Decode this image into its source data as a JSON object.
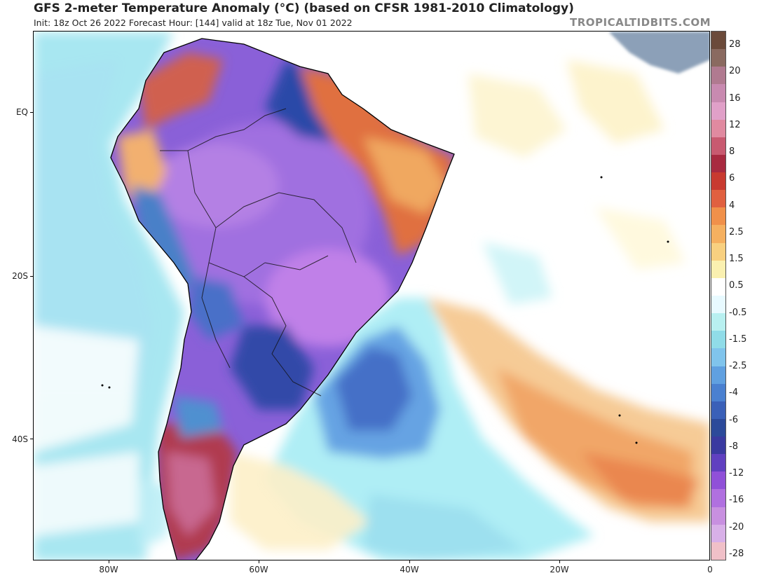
{
  "header": {
    "title": "GFS 2-meter Temperature Anomaly (°C) (based on CFSR 1981-2010 Climatology)",
    "subtitle": "Init: 18z Oct 26 2022   Forecast Hour: [144]   valid at 18z Tue, Nov 01 2022",
    "brand": "TROPICALTIDBITS.COM"
  },
  "axes": {
    "lat_labels": [
      "EQ",
      "20S",
      "40S"
    ],
    "lon_labels": [
      "80W",
      "60W",
      "40W",
      "20W",
      "0"
    ]
  },
  "legend": {
    "labels": [
      "28",
      "20",
      "16",
      "12",
      "8",
      "6",
      "4",
      "2.5",
      "1.5",
      "0.5",
      "-0.5",
      "-1.5",
      "-2.5",
      "-4",
      "-6",
      "-8",
      "-12",
      "-16",
      "-20",
      "-28"
    ],
    "colors": [
      "#6b4a3a",
      "#8a6a60",
      "#b07a90",
      "#c88ab0",
      "#e0a0c8",
      "#e08aa0",
      "#c85a70",
      "#a82a40",
      "#c83a30",
      "#e06040",
      "#f0904a",
      "#f5b060",
      "#f8d080",
      "#faf0b0",
      "#ffffff",
      "#e8faff",
      "#b8f0f0",
      "#90dce8",
      "#80c4ec",
      "#60a0e0",
      "#4a80d0",
      "#3a60b8",
      "#2c4a9a",
      "#3a3aa0",
      "#6040c0",
      "#9050d8",
      "#b070e0",
      "#c890e0",
      "#d8b0e8",
      "#f0c0c8"
    ],
    "colors_note": ""
  }
}
